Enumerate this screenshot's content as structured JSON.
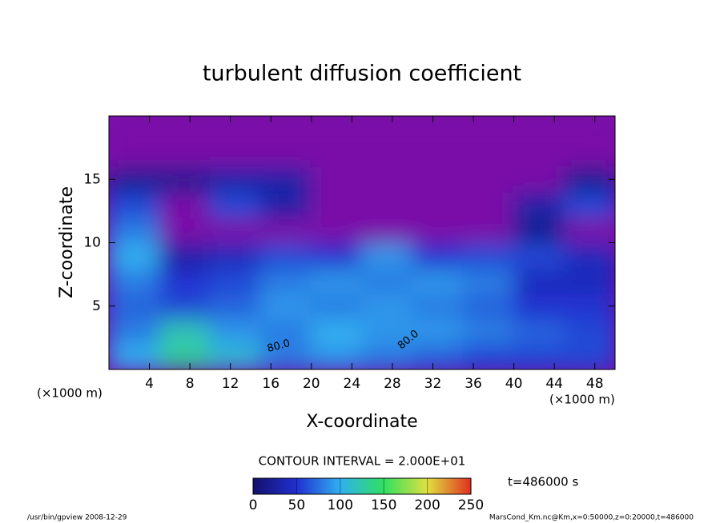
{
  "chart_data": {
    "type": "heatmap",
    "title": "turbulent diffusion coefficient",
    "x_label": "X-coordinate",
    "y_label": "Z-coordinate",
    "x_unit": "(×1000 m)",
    "y_unit": "(×1000 m)",
    "xlim": [
      0,
      50
    ],
    "ylim": [
      0,
      20
    ],
    "xticks": [
      4,
      8,
      12,
      16,
      20,
      24,
      28,
      32,
      36,
      40,
      44,
      48
    ],
    "yticks": [
      5,
      10,
      15
    ],
    "xbins": [
      0,
      5,
      10,
      15,
      20,
      25,
      30,
      35,
      40,
      45,
      50
    ],
    "ybins": [
      0,
      2,
      4,
      6,
      8,
      10,
      12,
      14,
      16,
      18,
      20
    ],
    "values": [
      [
        100,
        130,
        110,
        80,
        90,
        80,
        70,
        60,
        60,
        60
      ],
      [
        80,
        120,
        90,
        80,
        100,
        90,
        90,
        80,
        70,
        60
      ],
      [
        70,
        60,
        70,
        90,
        80,
        90,
        80,
        70,
        50,
        50
      ],
      [
        80,
        50,
        60,
        80,
        90,
        80,
        90,
        80,
        40,
        40
      ],
      [
        100,
        30,
        40,
        60,
        50,
        90,
        50,
        60,
        60,
        40
      ],
      [
        80,
        0,
        0,
        0,
        10,
        0,
        0,
        10,
        20,
        10
      ],
      [
        60,
        10,
        60,
        30,
        0,
        0,
        0,
        10,
        30,
        60
      ],
      [
        20,
        20,
        30,
        30,
        0,
        0,
        0,
        0,
        10,
        20
      ],
      [
        0,
        0,
        0,
        0,
        0,
        0,
        0,
        0,
        0,
        0
      ],
      [
        0,
        0,
        0,
        0,
        0,
        0,
        0,
        0,
        0,
        0
      ]
    ],
    "annotations": [
      "80.0",
      "80.0"
    ],
    "contour_interval": "CONTOUR INTERVAL = 2.000E+01",
    "time_label": "t=486000 s",
    "colorbar": {
      "lim": [
        0,
        250
      ],
      "ticks": [
        0,
        50,
        100,
        150,
        200,
        250
      ]
    },
    "footer_left": "/usr/bin/gpview   2008-12-29",
    "footer_right": "MarsCond_Km.nc@Km,x=0:50000,z=0:20000,t=486000"
  }
}
